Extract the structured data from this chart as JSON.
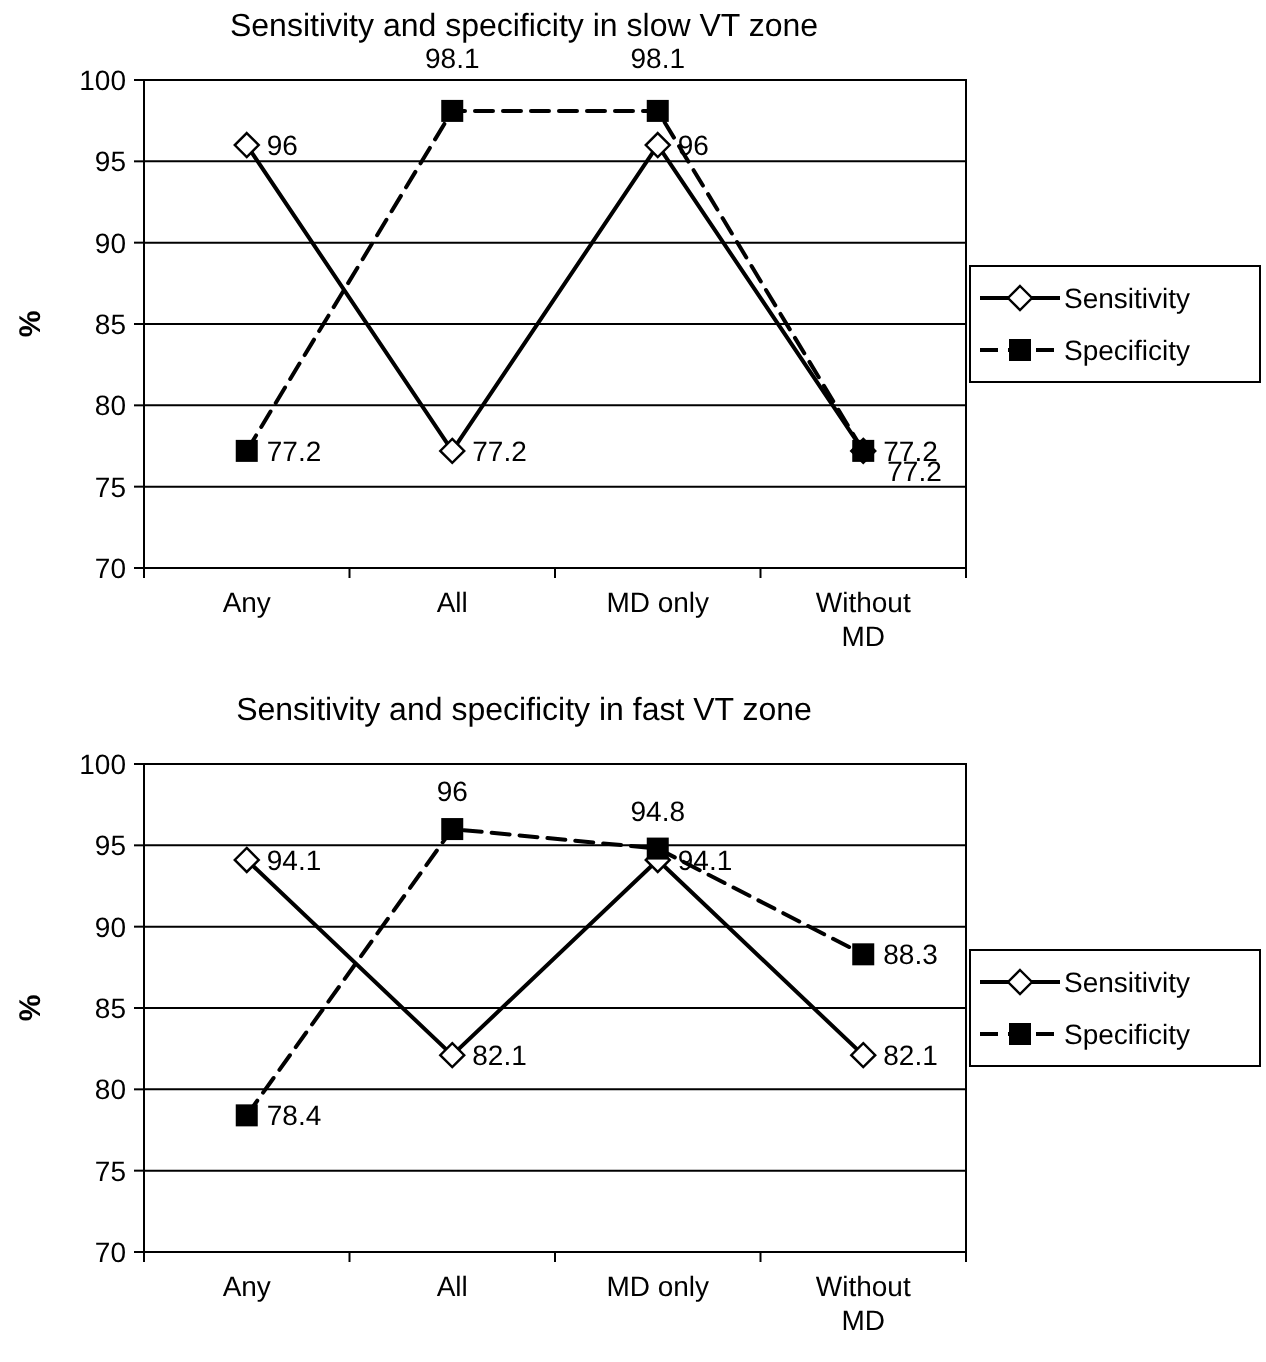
{
  "chart_data": [
    {
      "type": "line",
      "title": "Sensitivity and specificity in slow VT zone",
      "ylabel": "%",
      "categories": [
        "Any",
        "All",
        "MD only",
        "Without MD"
      ],
      "ylim": [
        70,
        100
      ],
      "yticks": [
        70,
        75,
        80,
        85,
        90,
        95,
        100
      ],
      "grid": "y",
      "legend": "right",
      "data_labels": true,
      "series": [
        {
          "name": "Sensitivity",
          "color": "#000000",
          "marker": "diamond",
          "line_style": "solid",
          "values": [
            96,
            77.2,
            96,
            77.2
          ]
        },
        {
          "name": "Specificity",
          "color": "#000000",
          "marker": "square",
          "line_style": "dashed",
          "values": [
            77.2,
            98.1,
            98.1,
            77.2
          ]
        }
      ]
    },
    {
      "type": "line",
      "title": "Sensitivity and specificity in fast VT zone",
      "ylabel": "%",
      "categories": [
        "Any",
        "All",
        "MD only",
        "Without MD"
      ],
      "ylim": [
        70,
        100
      ],
      "yticks": [
        70,
        75,
        80,
        85,
        90,
        95,
        100
      ],
      "grid": "y",
      "legend": "right",
      "data_labels": true,
      "series": [
        {
          "name": "Sensitivity",
          "color": "#000000",
          "marker": "diamond",
          "line_style": "solid",
          "values": [
            94.1,
            82.1,
            94.1,
            82.1
          ]
        },
        {
          "name": "Specificity",
          "color": "#000000",
          "marker": "square",
          "line_style": "dashed",
          "values": [
            78.4,
            96,
            94.8,
            88.3
          ]
        }
      ]
    }
  ]
}
